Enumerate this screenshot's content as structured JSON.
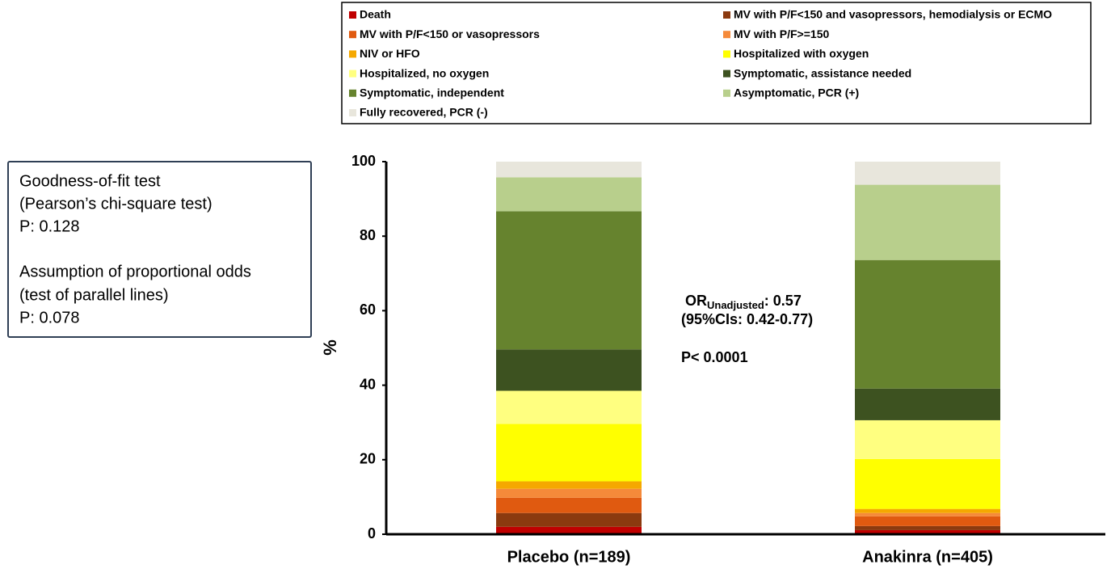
{
  "chart_data": {
    "type": "stacked_bar",
    "categories": [
      "Placebo (n=189)",
      "Anakinra (n=405)"
    ],
    "y_label": "%",
    "ylim": [
      0,
      100
    ],
    "yticks": [
      0,
      20,
      40,
      60,
      80,
      100
    ],
    "grid": false,
    "series": [
      {
        "name": "Death",
        "color": "#c00000",
        "values": [
          2.0,
          1.1
        ]
      },
      {
        "name": "MV with P/F<150 and vasopressors, hemodialysis or ECMO",
        "color": "#8b3a0f",
        "values": [
          3.7,
          1.1
        ]
      },
      {
        "name": "MV with P/F<150 or vasopressors",
        "color": "#e05a10",
        "values": [
          4.1,
          2.6
        ]
      },
      {
        "name": "MV with P/F>=150",
        "color": "#f58a3a",
        "values": [
          2.4,
          0.9
        ]
      },
      {
        "name": "NIV or HFO",
        "color": "#f5a800",
        "values": [
          2.0,
          1.1
        ]
      },
      {
        "name": "Hospitalized with oxygen",
        "color": "#ffff00",
        "values": [
          15.4,
          13.4
        ]
      },
      {
        "name": "Hospitalized, no oxygen",
        "color": "#ffff80",
        "values": [
          8.9,
          10.4
        ]
      },
      {
        "name": "Symptomatic, assistance needed",
        "color": "#3d5220",
        "values": [
          11.1,
          8.5
        ]
      },
      {
        "name": "Symptomatic, independent",
        "color": "#66832e",
        "values": [
          37.1,
          34.5
        ]
      },
      {
        "name": "Asymptomatic, PCR (+)",
        "color": "#b8cf8c",
        "values": [
          9.1,
          20.2
        ]
      },
      {
        "name": "Fully recovered, PCR (-)",
        "color": "#e8e6dc",
        "values": [
          4.2,
          6.2
        ]
      }
    ],
    "annotations": [
      "OR",
      "Unadjusted",
      ": 0.57",
      "(95%CIs: 0.42-0.77)",
      "P< 0.0001"
    ],
    "stats_box": [
      "Goodness-of-fit test",
      "(Pearson’s chi-square test)",
      "P: 0.128",
      "Assumption of proportional odds",
      "(test of parallel lines)",
      "P: 0.078"
    ]
  }
}
